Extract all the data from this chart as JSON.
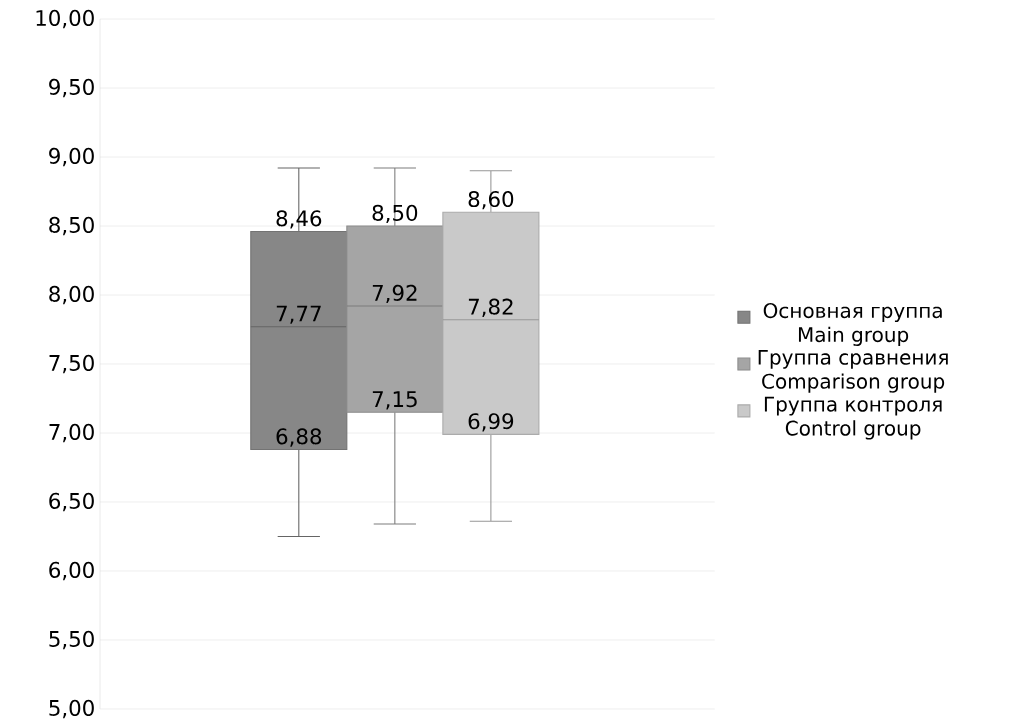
{
  "chart_data": {
    "type": "box",
    "categories": [
      null
    ],
    "series": [
      {
        "name": "Основная группа Main group",
        "color": "#878787",
        "boxes": [
          {
            "low": 6.25,
            "q1": 6.88,
            "median": 7.77,
            "q3": 8.46,
            "high": 8.92
          }
        ]
      },
      {
        "name": "Группа сравнения Comparison group",
        "color": "#a5a5a5",
        "boxes": [
          {
            "low": 6.34,
            "q1": 7.15,
            "median": 7.92,
            "q3": 8.5,
            "high": 8.92
          }
        ]
      },
      {
        "name": "Группа контроля Control group",
        "color": "#c9c9c9",
        "boxes": [
          {
            "low": 6.36,
            "q1": 6.99,
            "median": 7.82,
            "q3": 8.6,
            "high": 8.9
          }
        ]
      }
    ],
    "ylim": [
      5,
      10
    ],
    "yticks": [
      {
        "value": 5,
        "label": "5,00"
      },
      {
        "value": 5.5,
        "label": "5,50"
      },
      {
        "value": 6,
        "label": "6,00"
      },
      {
        "value": 6.5,
        "label": "6,50"
      },
      {
        "value": 7,
        "label": "7,00"
      },
      {
        "value": 7.5,
        "label": "7,50"
      },
      {
        "value": 8,
        "label": "8,00"
      },
      {
        "value": 8.5,
        "label": "8,50"
      },
      {
        "value": 9,
        "label": "9,00"
      },
      {
        "value": 9.5,
        "label": "9,50"
      },
      {
        "value": 10,
        "label": "10,00"
      }
    ],
    "annotations": [
      {
        "text": "6,88",
        "y": 6.88
      },
      {
        "text": "7,77",
        "y": 7.77
      },
      {
        "text": "8,46",
        "y": 8.46
      },
      {
        "text": "7,15",
        "y": 7.15
      },
      {
        "text": "7,92",
        "y": 7.92
      },
      {
        "text": "8,50",
        "y": 8.5
      },
      {
        "text": "6,99",
        "y": 6.99
      },
      {
        "text": "7,82",
        "y": 7.82
      },
      {
        "text": "8,60",
        "y": 8.6
      }
    ],
    "grid": "y",
    "legend": "right"
  }
}
